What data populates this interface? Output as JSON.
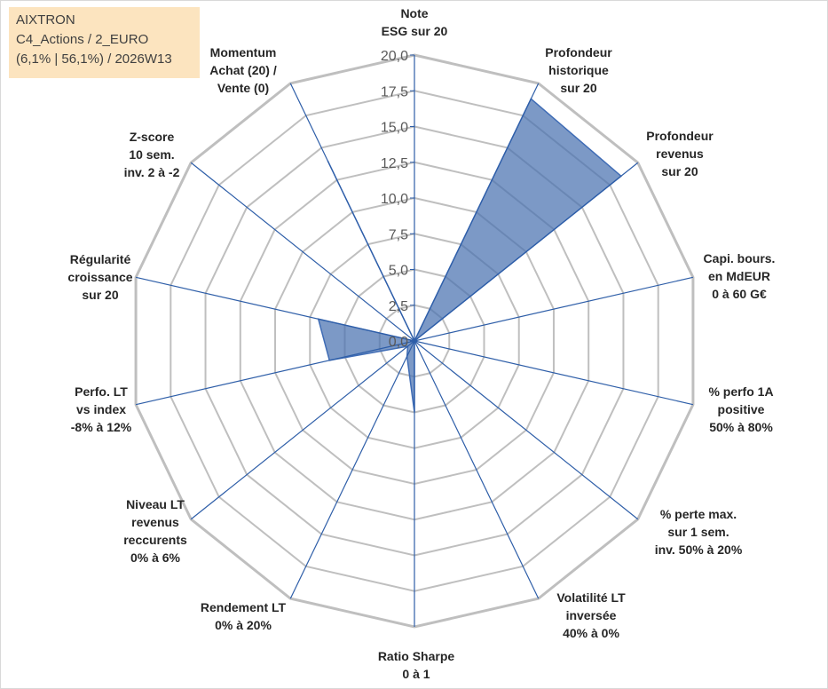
{
  "info": {
    "line1": "AIXTRON",
    "line2": "C4_Actions / 2_EURO",
    "line3": "(6,1% | 56,1%) / 2026W13"
  },
  "chart_data": {
    "type": "radar",
    "rmax": 20,
    "tick_step": 2.5,
    "tick_labels": [
      "0,0",
      "2,5",
      "5,0",
      "7,5",
      "10,0",
      "12,5",
      "15,0",
      "17,5",
      "20,0"
    ],
    "categories": [
      [
        "Note",
        "ESG sur 20"
      ],
      [
        "Profondeur",
        "historique",
        "sur 20"
      ],
      [
        "Profondeur",
        "revenus",
        "sur 20"
      ],
      [
        "Capi. bours.",
        "en MdEUR",
        "0 à 60 G€"
      ],
      [
        "% perfo 1A",
        "positive",
        "50% à 80%"
      ],
      [
        "% perte max.",
        "sur 1 sem.",
        "inv. 50% à 20%"
      ],
      [
        "Volatilité LT",
        "inversée",
        "40% à 0%"
      ],
      [
        "Ratio Sharpe",
        "0 à 1"
      ],
      [
        "Rendement LT",
        "0% à 20%"
      ],
      [
        "Niveau LT",
        "revenus",
        "reccurents",
        "0% à 6%"
      ],
      [
        "Perfo. LT",
        "vs index",
        "-8% à 12%"
      ],
      [
        "Régularité",
        "croissance",
        "sur 20"
      ],
      [
        "Z-score",
        "10 sem.",
        "inv. 2 à -2"
      ],
      [
        "Momentum",
        "Achat (20) /",
        "Vente (0)"
      ]
    ],
    "values": [
      0,
      18.8,
      18.5,
      0,
      0,
      0,
      0,
      5.0,
      1.2,
      0.6,
      6.1,
      6.9,
      0,
      14.0
    ],
    "grid": true,
    "fill_color": "#4a72b0",
    "stroke_color": "#3f6cb5",
    "spoke_color": "#2e5ea8",
    "grid_color": "#bfbfbf"
  }
}
